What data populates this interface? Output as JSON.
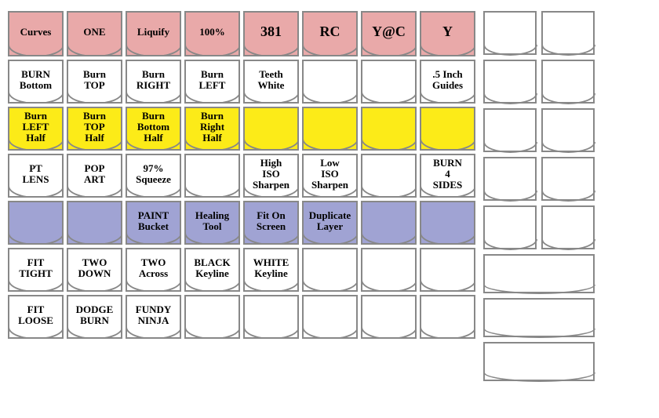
{
  "colors": {
    "pink": "#e9a9a9",
    "yellow": "#fceb18",
    "purple": "#a0a3d3",
    "white": "#ffffff",
    "border": "#888888"
  },
  "left_rows": [
    {
      "fill": "#e9a9a9",
      "cells": [
        {
          "label": "Curves",
          "big": false
        },
        {
          "label": "ONE"
        },
        {
          "label": "Liquify"
        },
        {
          "label": "100%"
        },
        {
          "label": "381",
          "big": true
        },
        {
          "label": "RC",
          "big": true
        },
        {
          "label": "Y@C",
          "big": true
        },
        {
          "label": "Y",
          "big": true
        }
      ]
    },
    {
      "fill": "#ffffff",
      "cells": [
        {
          "label": "BURN\nBottom"
        },
        {
          "label": "Burn\nTOP"
        },
        {
          "label": "Burn\nRIGHT"
        },
        {
          "label": "Burn\nLEFT"
        },
        {
          "label": "Teeth\nWhite"
        },
        {
          "label": ""
        },
        {
          "label": ""
        },
        {
          "label": ".5 Inch\nGuides"
        }
      ]
    },
    {
      "fill": "#fceb18",
      "cells": [
        {
          "label": "Burn\nLEFT\nHalf"
        },
        {
          "label": "Burn\nTOP\nHalf"
        },
        {
          "label": "Burn\nBottom\nHalf"
        },
        {
          "label": "Burn\nRight\nHalf"
        },
        {
          "label": ""
        },
        {
          "label": ""
        },
        {
          "label": ""
        },
        {
          "label": ""
        }
      ]
    },
    {
      "fill": "#ffffff",
      "cells": [
        {
          "label": "PT\nLENS"
        },
        {
          "label": "POP\nART"
        },
        {
          "label": "97%\nSqueeze"
        },
        {
          "label": ""
        },
        {
          "label": "High\nISO\nSharpen"
        },
        {
          "label": "Low\nISO\nSharpen"
        },
        {
          "label": ""
        },
        {
          "label": "BURN\n4\nSIDES"
        }
      ]
    },
    {
      "fill": "#a0a3d3",
      "cells": [
        {
          "label": ""
        },
        {
          "label": ""
        },
        {
          "label": "PAINT\nBucket"
        },
        {
          "label": "Healing\nTool"
        },
        {
          "label": "Fit On\nScreen"
        },
        {
          "label": "Duplicate\nLayer"
        },
        {
          "label": ""
        },
        {
          "label": ""
        }
      ]
    },
    {
      "fill": "#ffffff",
      "cells": [
        {
          "label": "FIT\nTIGHT"
        },
        {
          "label": "TWO\nDOWN"
        },
        {
          "label": "TWO\nAcross"
        },
        {
          "label": "BLACK\nKeyline"
        },
        {
          "label": "WHITE\nKeyline"
        },
        {
          "label": ""
        },
        {
          "label": ""
        },
        {
          "label": ""
        }
      ]
    },
    {
      "fill": "#ffffff",
      "cells": [
        {
          "label": "FIT\nLOOSE"
        },
        {
          "label": "DODGE\nBURN"
        },
        {
          "label": "FUNDY\nNINJA"
        },
        {
          "label": ""
        },
        {
          "label": ""
        },
        {
          "label": ""
        },
        {
          "label": ""
        },
        {
          "label": ""
        }
      ]
    }
  ],
  "right_section": {
    "pairs_count": 5,
    "wide_count": 3
  }
}
